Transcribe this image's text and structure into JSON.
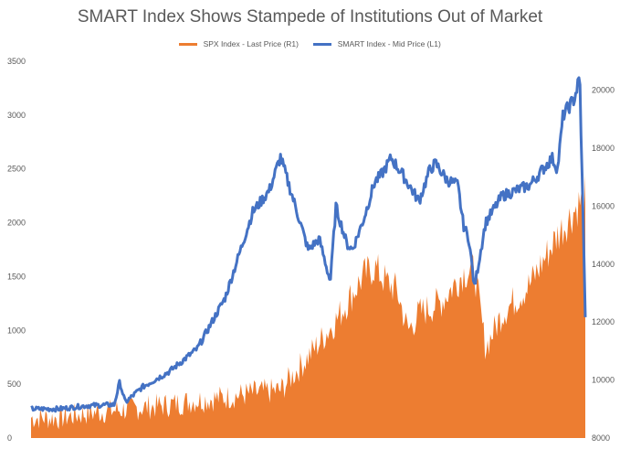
{
  "chart_data": {
    "type": "area",
    "title": "SMART Index Shows Stampede of Institutions Out of Market",
    "xlabel": "",
    "ylabel": "",
    "legend_position": "top",
    "grid": false,
    "left_axis": {
      "ylim": [
        0,
        3500
      ],
      "ticks": [
        "0",
        "500",
        "1000",
        "1500",
        "2000",
        "2500",
        "3000",
        "3500"
      ]
    },
    "right_axis": {
      "ylim": [
        8000,
        21000
      ],
      "ticks": [
        "8000",
        "10000",
        "12000",
        "14000",
        "16000",
        "18000",
        "20000"
      ]
    },
    "series": [
      {
        "name": "SPX Index - Last Price (R1)",
        "type": "area",
        "axis": "right",
        "color": "#ED7D31",
        "x": [
          0,
          5,
          10,
          15,
          20,
          25,
          30,
          35,
          40,
          45,
          50,
          55,
          60,
          62,
          64,
          66,
          68,
          70,
          72,
          74,
          76,
          78,
          80,
          82,
          85,
          90,
          95,
          100
        ],
        "values": [
          8700,
          8690,
          8850,
          8950,
          9050,
          9150,
          9300,
          9400,
          9550,
          9650,
          10800,
          12050,
          13600,
          13900,
          13400,
          13100,
          11700,
          12300,
          12500,
          12700,
          13200,
          13700,
          13800,
          11100,
          12300,
          13300,
          15000,
          16400
        ]
      },
      {
        "name": "SMART Index - Mid Price (L1)",
        "type": "line",
        "axis": "left",
        "color": "#4472C4",
        "x": [
          0,
          5,
          10,
          15,
          16,
          17,
          20,
          25,
          30,
          35,
          40,
          43,
          45,
          48,
          50,
          52,
          54,
          55,
          57,
          58,
          60,
          62,
          63,
          65,
          67,
          70,
          72,
          73,
          75,
          77,
          78,
          79,
          80,
          82,
          85,
          90,
          94,
          95,
          96,
          98,
          99,
          100
        ],
        "values": [
          270,
          270,
          300,
          310,
          520,
          330,
          470,
          620,
          830,
          1300,
          2100,
          2300,
          2610,
          2100,
          1750,
          1850,
          1450,
          2150,
          1800,
          1750,
          2030,
          2380,
          2430,
          2600,
          2450,
          2200,
          2500,
          2550,
          2400,
          2350,
          1980,
          1850,
          1400,
          2000,
          2250,
          2350,
          2600,
          2500,
          3000,
          3150,
          3350,
          1150
        ]
      }
    ]
  }
}
